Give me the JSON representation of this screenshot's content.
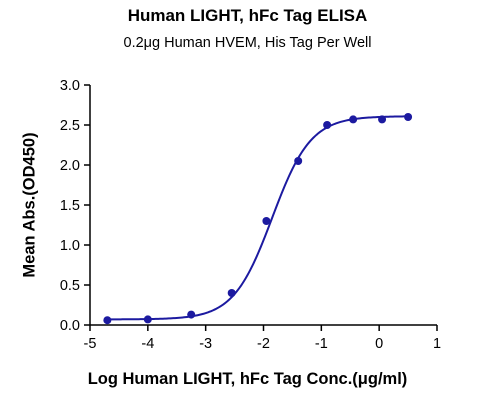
{
  "chart_data": {
    "type": "line",
    "title": "Human LIGHT, hFc Tag ELISA",
    "subtitle": "0.2μg Human HVEM, His Tag Per Well",
    "xlabel": "Log Human LIGHT, hFc Tag Conc.(μg/ml)",
    "ylabel": "Mean Abs.(OD450)",
    "xlim": [
      -5,
      1
    ],
    "ylim": [
      0,
      3.0
    ],
    "x_ticks": [
      "-5",
      "-4",
      "-3",
      "-2",
      "-1",
      "0",
      "1"
    ],
    "y_ticks": [
      "0.0",
      "0.5",
      "1.0",
      "1.5",
      "2.0",
      "2.5",
      "3.0"
    ],
    "grid": false,
    "legend": "none",
    "series": [
      {
        "points": [
          {
            "x": -4.7,
            "y": 0.06
          },
          {
            "x": -4.0,
            "y": 0.07
          },
          {
            "x": -3.25,
            "y": 0.13
          },
          {
            "x": -2.55,
            "y": 0.4
          },
          {
            "x": -1.95,
            "y": 1.3
          },
          {
            "x": -1.4,
            "y": 2.05
          },
          {
            "x": -0.9,
            "y": 2.5
          },
          {
            "x": -0.45,
            "y": 2.57
          },
          {
            "x": 0.05,
            "y": 2.57
          },
          {
            "x": 0.5,
            "y": 2.6
          }
        ],
        "fit": {
          "model": "4PL",
          "bottom": 0.07,
          "top": 2.61,
          "logEC50": -1.85,
          "hill": 1.3
        },
        "color": "#1c1aa0"
      }
    ]
  }
}
